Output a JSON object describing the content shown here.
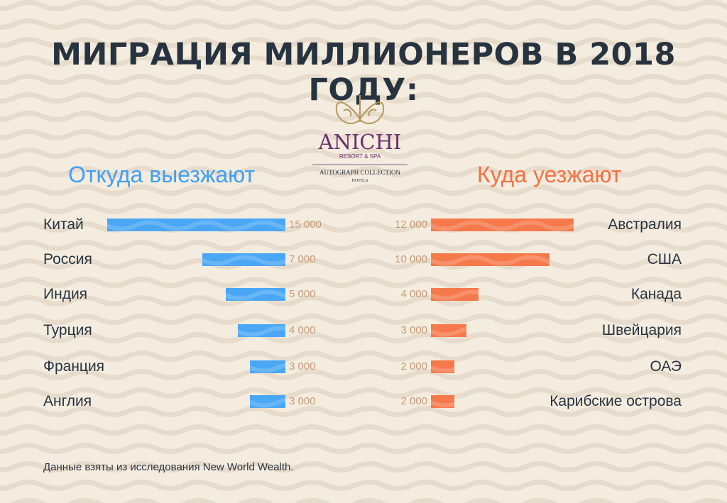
{
  "title": "МИГРАЦИЯ МИЛЛИОНЕРОВ В 2018 ГОДУ:",
  "logo": {
    "name": "ANICHI",
    "line1": "RESORT & SPA",
    "line2": "AUTOGRAPH COLLECTION",
    "line3": "HOTELS"
  },
  "colors": {
    "background": "#f3ecdf",
    "outgoing": "#49a7f6",
    "incoming": "#f6794b",
    "title": "#273440",
    "value": "#c79a79",
    "logo_gold": "#b8975e",
    "logo_purple": "#6b2f6e"
  },
  "source": "Данные взяты из исследования New World Wealth.",
  "chart_data": [
    {
      "type": "bar",
      "title": "Откуда выезжают",
      "orientation": "horizontal",
      "direction": "right-to-left",
      "categories": [
        "Китай",
        "Россия",
        "Индия",
        "Турция",
        "Франция",
        "Англия"
      ],
      "values": [
        15000,
        7000,
        5000,
        4000,
        3000,
        3000
      ],
      "labels": [
        "15 000",
        "7 000",
        "5 000",
        "4 000",
        "3 000",
        "3 000"
      ],
      "xlim": [
        0,
        15000
      ]
    },
    {
      "type": "bar",
      "title": "Куда уезжают",
      "orientation": "horizontal",
      "direction": "left-to-right",
      "categories": [
        "Австралия",
        "США",
        "Канада",
        "Швейцария",
        "ОАЭ",
        "Карибские острова"
      ],
      "values": [
        12000,
        10000,
        4000,
        3000,
        2000,
        2000
      ],
      "labels": [
        "12 000",
        "10 000",
        "4 000",
        "3 000",
        "2 000",
        "2 000"
      ],
      "xlim": [
        0,
        12000
      ]
    }
  ]
}
